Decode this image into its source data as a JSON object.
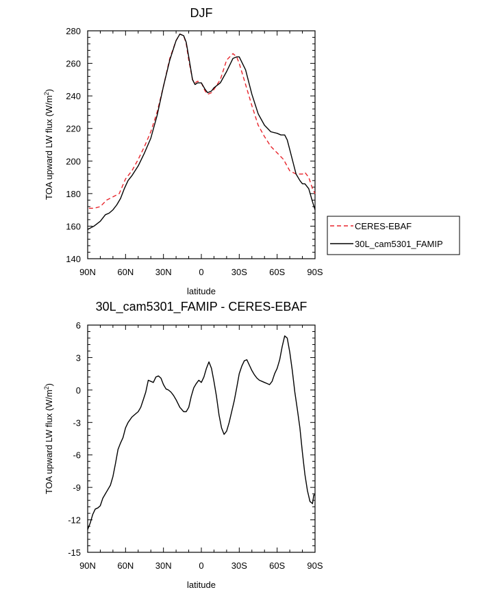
{
  "chart_data": [
    {
      "type": "line",
      "title": "DJF",
      "xlabel": "latitude",
      "ylabel": "TOA upward LW flux (W/m",
      "ylabel_sup": "2",
      "ylabel_end": ")",
      "xlim": [
        90,
        -90
      ],
      "ylim": [
        140,
        280
      ],
      "xticks": [
        90,
        60,
        30,
        0,
        -30,
        -60,
        -90
      ],
      "xtick_labels": [
        "90N",
        "60N",
        "30N",
        "0",
        "30S",
        "60S",
        "90S"
      ],
      "yticks": [
        140,
        160,
        180,
        200,
        220,
        240,
        260,
        280
      ],
      "ytick_labels": [
        "140",
        "160",
        "180",
        "200",
        "220",
        "240",
        "260",
        "280"
      ],
      "legend_position": "right",
      "series": [
        {
          "name": "CERES-EBAF",
          "color": "#e8242b",
          "dash": "dashed",
          "x": [
            89,
            85,
            80,
            75,
            70,
            65,
            60,
            55,
            50,
            45,
            40,
            35,
            30,
            25,
            20,
            17,
            14,
            12,
            10,
            7,
            5,
            3,
            0,
            -3,
            -5,
            -8,
            -10,
            -15,
            -20,
            -25,
            -28,
            -30,
            -35,
            -40,
            -45,
            -50,
            -55,
            -60,
            -65,
            -70,
            -75,
            -80,
            -82,
            -85,
            -88,
            -90
          ],
          "y": [
            171,
            171,
            172,
            176,
            178,
            180,
            189,
            194,
            201,
            209,
            218,
            230,
            246,
            263,
            274,
            278,
            277,
            272,
            262,
            250,
            248,
            249,
            248,
            243,
            241,
            242,
            244,
            250,
            262,
            266,
            264,
            260,
            247,
            234,
            222,
            215,
            209,
            205,
            201,
            194,
            192,
            192,
            193,
            190,
            183,
            180
          ]
        },
        {
          "name": "30L_cam5301_FAMIP",
          "color": "#000000",
          "dash": "solid",
          "x": [
            90,
            85,
            80,
            76,
            73,
            70,
            67,
            64,
            61,
            58,
            55,
            50,
            45,
            40,
            35,
            30,
            25,
            20,
            17,
            14,
            12,
            10,
            7,
            5,
            3,
            0,
            -3,
            -5,
            -8,
            -10,
            -15,
            -20,
            -25,
            -28,
            -30,
            -35,
            -40,
            -45,
            -50,
            -55,
            -60,
            -63,
            -66,
            -68,
            -70,
            -73,
            -75,
            -78,
            -80,
            -82,
            -85,
            -88,
            -90
          ],
          "y": [
            158,
            160,
            163,
            167,
            168,
            170,
            173,
            177,
            183,
            188,
            191,
            197,
            205,
            214,
            228,
            246,
            262,
            274,
            278,
            277,
            273,
            264,
            250,
            247,
            248,
            248,
            244,
            242,
            243,
            245,
            248,
            255,
            263,
            264,
            264,
            256,
            241,
            229,
            222,
            218,
            217,
            216,
            216,
            213,
            207,
            198,
            192,
            188,
            186,
            186,
            183,
            175,
            170
          ]
        }
      ]
    },
    {
      "type": "line",
      "title": "30L_cam5301_FAMIP - CERES-EBAF",
      "xlabel": "latitude",
      "ylabel": "TOA upward LW flux (W/m",
      "ylabel_sup": "2",
      "ylabel_end": ")",
      "xlim": [
        90,
        -90
      ],
      "ylim": [
        -15,
        6
      ],
      "xticks": [
        90,
        60,
        30,
        0,
        -30,
        -60,
        -90
      ],
      "xtick_labels": [
        "90N",
        "60N",
        "30N",
        "0",
        "30S",
        "60S",
        "90S"
      ],
      "yticks": [
        -15,
        -12,
        -9,
        -6,
        -3,
        0,
        3,
        6
      ],
      "ytick_labels": [
        "-15",
        "-12",
        "-9",
        "-6",
        "-3",
        "0",
        "3",
        "6"
      ],
      "series": [
        {
          "name": "",
          "color": "#000000",
          "dash": "solid",
          "x": [
            90,
            88,
            86,
            84,
            82,
            80,
            78,
            76,
            74,
            72,
            70,
            68,
            66,
            64,
            62,
            60,
            58,
            55,
            52,
            50,
            48,
            46,
            44,
            42,
            40,
            38,
            36,
            34,
            32,
            30,
            28,
            26,
            24,
            22,
            20,
            17,
            14,
            12,
            10,
            8,
            6,
            4,
            2,
            0,
            -2,
            -4,
            -6,
            -8,
            -10,
            -12,
            -14,
            -16,
            -18,
            -20,
            -22,
            -24,
            -26,
            -28,
            -30,
            -32,
            -34,
            -36,
            -38,
            -40,
            -42,
            -44,
            -46,
            -48,
            -50,
            -52,
            -54,
            -56,
            -58,
            -60,
            -62,
            -64,
            -66,
            -68,
            -70,
            -72,
            -74,
            -76,
            -78,
            -80,
            -82,
            -84,
            -86,
            -88,
            -89,
            -90
          ],
          "y": [
            -12.9,
            -12.3,
            -11.5,
            -11.0,
            -10.9,
            -10.7,
            -10.0,
            -9.6,
            -9.2,
            -8.8,
            -8.0,
            -6.8,
            -5.5,
            -4.9,
            -4.4,
            -3.5,
            -3.0,
            -2.5,
            -2.2,
            -2.0,
            -1.6,
            -0.9,
            -0.2,
            0.9,
            0.8,
            0.7,
            1.2,
            1.3,
            1.1,
            0.5,
            0.1,
            0.0,
            -0.2,
            -0.5,
            -0.9,
            -1.6,
            -2.0,
            -2.0,
            -1.6,
            -0.6,
            0.2,
            0.6,
            0.9,
            0.7,
            1.2,
            2.0,
            2.6,
            2.0,
            0.8,
            -0.6,
            -2.3,
            -3.5,
            -4.1,
            -3.8,
            -3.0,
            -2.0,
            -1.0,
            0.2,
            1.5,
            2.2,
            2.7,
            2.8,
            2.3,
            1.8,
            1.4,
            1.1,
            0.9,
            0.8,
            0.7,
            0.6,
            0.5,
            0.8,
            1.5,
            2.0,
            2.8,
            4.0,
            5.0,
            4.8,
            3.5,
            1.8,
            -0.2,
            -1.8,
            -3.5,
            -5.8,
            -7.8,
            -9.3,
            -10.3,
            -10.5,
            -9.7,
            -9.7
          ]
        }
      ]
    }
  ]
}
